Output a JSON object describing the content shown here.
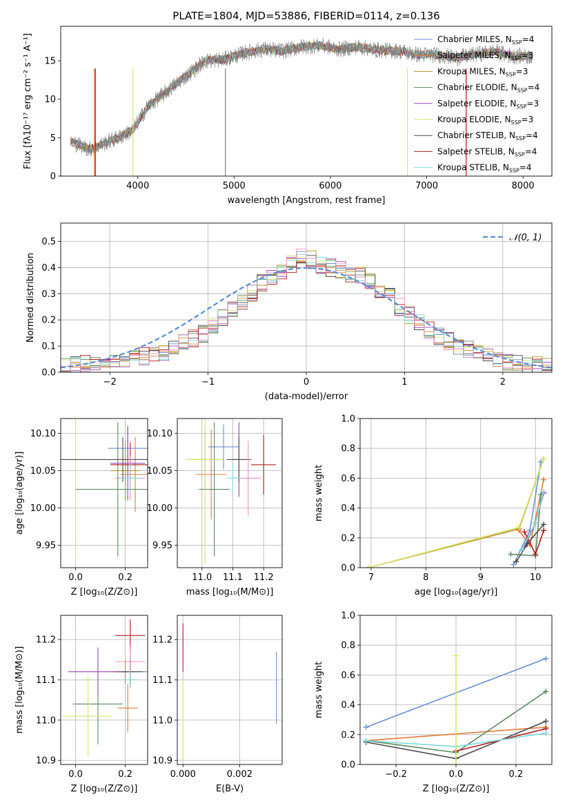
{
  "figure": {
    "title": "PLATE=1804, MJD=53886, FIBERID=0114, z=0.136"
  },
  "chart_data": [
    {
      "id": "spectrum",
      "type": "line",
      "xlabel": "wavelength [Angstrom, rest frame]",
      "ylabel": "Flux [fλ10⁻¹⁷ erg cm⁻² s⁻¹ A⁻¹]",
      "xlim": [
        3200,
        8300
      ],
      "ylim": [
        0,
        19.5
      ],
      "xticks": [
        4000,
        5000,
        6000,
        7000,
        8000
      ],
      "yticks": [
        0,
        5,
        10,
        15
      ],
      "grid": false,
      "legend_position": "top-right",
      "data_curve": {
        "x": [
          3300,
          3500,
          3800,
          3950,
          4100,
          4300,
          4500,
          4700,
          4900,
          5100,
          5300,
          5500,
          5700,
          5900,
          6100,
          6300,
          6500,
          6700,
          6900,
          7100,
          7300,
          7500,
          7700,
          7900,
          8100
        ],
        "y": [
          4.5,
          3.5,
          5.0,
          6.0,
          9.0,
          11.0,
          13.0,
          15.0,
          15.2,
          16.0,
          16.5,
          16.3,
          16.8,
          17.0,
          16.5,
          16.8,
          16.4,
          16.3,
          15.8,
          15.8,
          15.4,
          15.8,
          16.2,
          15.6,
          15.6
        ]
      },
      "series": [
        {
          "name": "Chabrier MILES, N_SSP=4",
          "legend_base": "Chabrier MILES, N",
          "legend_sub": "SSP",
          "legend_tail": "=4",
          "color": "#6a8fd4"
        },
        {
          "name": "Salpeter MILES, N_SSP=3",
          "legend_base": "Salpeter MILES, N",
          "legend_sub": "SSP",
          "legend_tail": "=3",
          "color": "#e07b39"
        },
        {
          "name": "Kroupa MILES, N_SSP=3",
          "legend_base": "Kroupa MILES, N",
          "legend_sub": "SSP",
          "legend_tail": "=3",
          "color": "#b8902a"
        },
        {
          "name": "Chabrier ELODIE, N_SSP=4",
          "legend_base": "Chabrier ELODIE, N",
          "legend_sub": "SSP",
          "legend_tail": "=4",
          "color": "#5a8a5e"
        },
        {
          "name": "Salpeter ELODIE, N_SSP=3",
          "legend_base": "Salpeter ELODIE, N",
          "legend_sub": "SSP",
          "legend_tail": "=3",
          "color": "#9a45b8"
        },
        {
          "name": "Kroupa ELODIE, N_SSP=3",
          "legend_base": "Kroupa ELODIE, N",
          "legend_sub": "SSP",
          "legend_tail": "=3",
          "color": "#d6e46a"
        },
        {
          "name": "Chabrier STELIB, N_SSP=4",
          "legend_base": "Chabrier STELIB, N",
          "legend_sub": "SSP",
          "legend_tail": "=4",
          "color": "#4a4a4a"
        },
        {
          "name": "Salpeter STELIB, N_SSP=4",
          "legend_base": "Salpeter STELIB, N",
          "legend_sub": "SSP",
          "legend_tail": "=4",
          "color": "#b01a1a"
        },
        {
          "name": "Kroupa STELIB, N_SSP=4",
          "legend_base": "Kroupa STELIB, N",
          "legend_sub": "SSP",
          "legend_tail": "=4",
          "color": "#7fd8d8"
        }
      ]
    },
    {
      "id": "residuals",
      "type": "line",
      "xlabel": "(data-model)/error",
      "ylabel": "Normed distribution",
      "xlim": [
        -2.5,
        2.5
      ],
      "ylim": [
        0,
        0.57
      ],
      "xticks": [
        -2,
        -1,
        0,
        1,
        2
      ],
      "yticks": [
        0.0,
        0.1,
        0.2,
        0.3,
        0.4,
        0.5
      ],
      "grid": true,
      "legend_position": "top-right",
      "gaussian_label": "𝒩(0, 1)",
      "gaussian_color": "#5b8bd6",
      "histogram_bin_width": 0.1,
      "histogram_values": [
        0.02,
        0.025,
        0.03,
        0.035,
        0.04,
        0.045,
        0.05,
        0.055,
        0.06,
        0.065,
        0.075,
        0.09,
        0.11,
        0.13,
        0.15,
        0.18,
        0.21,
        0.24,
        0.27,
        0.3,
        0.34,
        0.36,
        0.38,
        0.41,
        0.44,
        0.43,
        0.41,
        0.4,
        0.39,
        0.38,
        0.37,
        0.35,
        0.32,
        0.29,
        0.25,
        0.22,
        0.19,
        0.16,
        0.14,
        0.12,
        0.1,
        0.085,
        0.07,
        0.06,
        0.05,
        0.04,
        0.035,
        0.03,
        0.025,
        0.02
      ]
    },
    {
      "id": "age-vs-Z",
      "type": "scatter",
      "xlabel": "Z [log₁₀(Z/Z⊙)]",
      "ylabel": "age  [log₁₀(age/yr)]",
      "xlim": [
        -0.06,
        0.29
      ],
      "ylim": [
        9.92,
        10.12
      ],
      "xticks": [
        0.0,
        0.2
      ],
      "yticks": [
        9.95,
        10.0,
        10.05,
        10.1
      ],
      "grid": true,
      "points": [
        {
          "x": 0.21,
          "y": 10.08,
          "xerr": 0.08,
          "yerr": 0.03,
          "color": "#6a8fd4"
        },
        {
          "x": 0.24,
          "y": 10.045,
          "xerr": 0.06,
          "yerr": 0.05,
          "color": "#e07b39"
        },
        {
          "x": 0.2,
          "y": 10.05,
          "xerr": 0.06,
          "yerr": 0.04,
          "color": "#b8902a"
        },
        {
          "x": 0.17,
          "y": 10.025,
          "xerr": 0.17,
          "yerr": 0.09,
          "color": "#5a8a5e"
        },
        {
          "x": 0.21,
          "y": 10.06,
          "xerr": 0.07,
          "yerr": 0.05,
          "color": "#9a45b8"
        },
        {
          "x": 0.0,
          "y": 10.065,
          "xerr": 0.1,
          "yerr": 0.14,
          "color": "#d6e46a"
        },
        {
          "x": 0.19,
          "y": 10.065,
          "xerr": 0.25,
          "yerr": 0.03,
          "color": "#4a4a4a"
        },
        {
          "x": 0.22,
          "y": 10.058,
          "xerr": 0.08,
          "yerr": 0.03,
          "color": "#b01a1a"
        },
        {
          "x": 0.22,
          "y": 10.04,
          "xerr": 0.06,
          "yerr": 0.03,
          "color": "#e890c0"
        },
        {
          "x": 0.22,
          "y": 10.04,
          "xerr": 0.04,
          "yerr": 0.02,
          "color": "#7fd8d8"
        }
      ]
    },
    {
      "id": "age-vs-mass",
      "type": "scatter",
      "xlabel": "mass [log₁₀(M/M⊙)]",
      "ylabel": "",
      "xlim": [
        10.92,
        11.26
      ],
      "ylim": [
        9.92,
        10.12
      ],
      "xticks": [
        11.0,
        11.1,
        11.2
      ],
      "yticks": [
        9.95,
        10.0,
        10.05,
        10.1
      ],
      "grid": true,
      "points": [
        {
          "x": 11.07,
          "y": 10.082,
          "xerr": 0.05,
          "yerr": 0.03,
          "color": "#6a8fd4"
        },
        {
          "x": 11.03,
          "y": 10.045,
          "xerr": 0.05,
          "yerr": 0.06,
          "color": "#e07b39"
        },
        {
          "x": 11.01,
          "y": 10.065,
          "xerr": 0.06,
          "yerr": 0.04,
          "color": "#b8902a"
        },
        {
          "x": 11.04,
          "y": 10.025,
          "xerr": 0.05,
          "yerr": 0.09,
          "color": "#5a8a5e"
        },
        {
          "x": 11.12,
          "y": 10.065,
          "xerr": 0.02,
          "yerr": 0.05,
          "color": "#9a45b8"
        },
        {
          "x": 11.01,
          "y": 10.065,
          "xerr": 0.06,
          "yerr": 0.14,
          "color": "#d6e46a"
        },
        {
          "x": 11.12,
          "y": 10.065,
          "xerr": 0.04,
          "yerr": 0.03,
          "color": "#4a4a4a"
        },
        {
          "x": 11.2,
          "y": 10.058,
          "xerr": 0.04,
          "yerr": 0.04,
          "color": "#b01a1a"
        },
        {
          "x": 11.15,
          "y": 10.04,
          "xerr": 0.04,
          "yerr": 0.05,
          "color": "#e890c0"
        },
        {
          "x": 11.1,
          "y": 10.04,
          "xerr": 0.02,
          "yerr": 0.02,
          "color": "#7fd8d8"
        }
      ]
    },
    {
      "id": "weight-vs-age",
      "type": "line",
      "xlabel": "age  [log₁₀(age/yr)]",
      "ylabel": "mass weight",
      "xlim": [
        6.8,
        10.3
      ],
      "ylim": [
        0,
        1.0
      ],
      "xticks": [
        7,
        8,
        9,
        10
      ],
      "yticks": [
        0.0,
        0.2,
        0.4,
        0.6,
        0.8,
        1.0
      ],
      "grid": true,
      "series": [
        {
          "color": "#6a8fd4",
          "x": [
            9.6,
            9.9,
            10.1
          ],
          "y": [
            0.02,
            0.25,
            0.71
          ]
        },
        {
          "color": "#e07b39",
          "x": [
            9.7,
            9.9,
            10.15
          ],
          "y": [
            0.25,
            0.15,
            0.59
          ]
        },
        {
          "color": "#b8902a",
          "x": [
            6.95,
            9.7,
            10.15
          ],
          "y": [
            0.0,
            0.26,
            0.73
          ]
        },
        {
          "color": "#5a8a5e",
          "x": [
            9.55,
            10.0,
            10.1
          ],
          "y": [
            0.09,
            0.08,
            0.49
          ]
        },
        {
          "color": "#9a45b8",
          "x": [
            9.8,
            10.0,
            10.15
          ],
          "y": [
            0.14,
            0.3,
            0.5
          ]
        },
        {
          "color": "#d6e46a",
          "x": [
            6.95,
            9.7,
            10.15
          ],
          "y": [
            0.0,
            0.27,
            0.73
          ]
        },
        {
          "color": "#4a4a4a",
          "x": [
            9.65,
            9.85,
            10.15
          ],
          "y": [
            0.04,
            0.16,
            0.29
          ]
        },
        {
          "color": "#b01a1a",
          "x": [
            9.8,
            10.0,
            10.15
          ],
          "y": [
            0.24,
            0.09,
            0.25
          ]
        },
        {
          "color": "#7fd8d8",
          "x": [
            9.75,
            10.0,
            10.15
          ],
          "y": [
            0.12,
            0.3,
            0.51
          ]
        }
      ]
    },
    {
      "id": "mass-vs-Z",
      "type": "scatter",
      "xlabel": "Z [log₁₀(Z/Z⊙)]",
      "ylabel": "mass [log₁₀(M/M⊙)]",
      "xlim": [
        -0.06,
        0.29
      ],
      "ylim": [
        10.89,
        11.26
      ],
      "xticks": [
        0.0,
        0.2
      ],
      "yticks": [
        10.9,
        11.0,
        11.1,
        11.2
      ],
      "grid": true,
      "points": [
        {
          "x": 0.22,
          "y": 11.12,
          "xerr": 0.08,
          "yerr": 0.03,
          "color": "#6a8fd4"
        },
        {
          "x": 0.21,
          "y": 11.03,
          "xerr": 0.04,
          "yerr": 0.06,
          "color": "#e07b39"
        },
        {
          "x": 0.2,
          "y": 11.12,
          "xerr": 0.05,
          "yerr": 0.03,
          "color": "#b8902a"
        },
        {
          "x": 0.09,
          "y": 11.04,
          "xerr": 0.1,
          "yerr": 0.1,
          "color": "#5a8a5e"
        },
        {
          "x": 0.09,
          "y": 11.12,
          "xerr": 0.12,
          "yerr": 0.06,
          "color": "#9a45b8"
        },
        {
          "x": 0.05,
          "y": 11.01,
          "xerr": 0.1,
          "yerr": 0.1,
          "color": "#d6e46a"
        },
        {
          "x": 0.22,
          "y": 11.12,
          "xerr": 0.05,
          "yerr": 0.04,
          "color": "#4a4a4a"
        },
        {
          "x": 0.22,
          "y": 11.21,
          "xerr": 0.06,
          "yerr": 0.04,
          "color": "#b01a1a"
        },
        {
          "x": 0.22,
          "y": 11.145,
          "xerr": 0.06,
          "yerr": 0.04,
          "color": "#e890c0"
        },
        {
          "x": 0.22,
          "y": 11.1,
          "xerr": 0.03,
          "yerr": 0.02,
          "color": "#7fd8d8"
        }
      ]
    },
    {
      "id": "mass-vs-ebv",
      "type": "scatter",
      "xlabel": "E(B-V)",
      "ylabel": "",
      "xlim": [
        -0.0002,
        0.0035
      ],
      "ylim": [
        10.89,
        11.26
      ],
      "xticks": [
        0.0,
        0.002
      ],
      "yticks": [
        10.9,
        11.0,
        11.1,
        11.2
      ],
      "grid": true,
      "points": [
        {
          "x": 0.0,
          "y": 11.18,
          "xerr": 0,
          "yerr": 0.06,
          "color": "#b01a1a"
        },
        {
          "x": 0.0,
          "y": 11.0,
          "xerr": 0,
          "yerr": 0.1,
          "color": "#d6e46a"
        },
        {
          "x": 0.0033,
          "y": 11.08,
          "xerr": 0,
          "yerr": 0.09,
          "color": "#6a8fd4"
        }
      ]
    },
    {
      "id": "weight-vs-Z",
      "type": "line",
      "xlabel": "Z [log₁₀(Z/Z⊙)]",
      "ylabel": "mass weight",
      "xlim": [
        -0.32,
        0.32
      ],
      "ylim": [
        0,
        1.0
      ],
      "xticks": [
        -0.2,
        0.0,
        0.2
      ],
      "yticks": [
        0.0,
        0.2,
        0.4,
        0.6,
        0.8,
        1.0
      ],
      "grid": true,
      "series": [
        {
          "color": "#6a8fd4",
          "x": [
            -0.3,
            0.3
          ],
          "y": [
            0.25,
            0.71
          ]
        },
        {
          "color": "#e07b39",
          "x": [
            -0.3,
            0.3
          ],
          "y": [
            0.16,
            0.25
          ]
        },
        {
          "color": "#5a8a5e",
          "x": [
            -0.3,
            0.0,
            0.3
          ],
          "y": [
            0.16,
            0.08,
            0.49
          ]
        },
        {
          "color": "#4a4a4a",
          "x": [
            -0.3,
            0.0,
            0.3
          ],
          "y": [
            0.15,
            0.04,
            0.29
          ]
        },
        {
          "color": "#b01a1a",
          "x": [
            0.0,
            0.3
          ],
          "y": [
            0.09,
            0.24
          ]
        },
        {
          "color": "#7fd8d8",
          "x": [
            -0.3,
            0.0,
            0.3
          ],
          "y": [
            0.16,
            0.12,
            0.21
          ]
        },
        {
          "color": "#d6e46a",
          "x": [
            0.0,
            0.0
          ],
          "y": [
            0.0,
            0.73
          ]
        }
      ]
    }
  ]
}
